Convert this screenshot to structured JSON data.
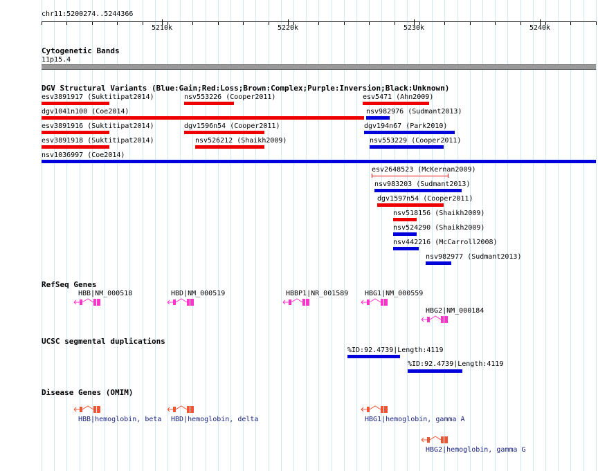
{
  "ruler": {
    "location": "chr11:5200274..5244366",
    "ticks": [
      "5210k",
      "5220k",
      "5230k",
      "5240k"
    ]
  },
  "cytobands": {
    "title": "Cytogenetic Bands",
    "band": "11p15.4"
  },
  "dgv": {
    "title": "DGV Structural Variants (Blue:Gain;Red:Loss;Brown:Complex;Purple:Inversion;Black:Unknown)",
    "colors": {
      "gain": "#0000dd",
      "loss": "#ee0000"
    },
    "features": [
      {
        "label": "esv3891917 (Suktitipat2014)",
        "type": "loss"
      },
      {
        "label": "nsv553226 (Cooper2011)",
        "type": "loss"
      },
      {
        "label": "esv5471 (Ahn2009)",
        "type": "loss"
      },
      {
        "label": "dgv1041n100 (Coe2014)",
        "type": "loss"
      },
      {
        "label": "nsv982976 (Sudmant2013)",
        "type": "gain"
      },
      {
        "label": "esv3891916 (Suktitipat2014)",
        "type": "loss"
      },
      {
        "label": "dgv1596n54 (Cooper2011)",
        "type": "loss"
      },
      {
        "label": "dgv194n67 (Park2010)",
        "type": "gain"
      },
      {
        "label": "esv3891918 (Suktitipat2014)",
        "type": "loss"
      },
      {
        "label": "nsv526212 (Shaikh2009)",
        "type": "loss"
      },
      {
        "label": "nsv553229 (Cooper2011)",
        "type": "gain"
      },
      {
        "label": "nsv1036997 (Coe2014)",
        "type": "gain"
      },
      {
        "label": "esv2648523 (McKernan2009)",
        "type": "loss"
      },
      {
        "label": "nsv983203 (Sudmant2013)",
        "type": "gain"
      },
      {
        "label": "dgv1597n54 (Cooper2011)",
        "type": "loss"
      },
      {
        "label": "nsv518156 (Shaikh2009)",
        "type": "loss"
      },
      {
        "label": "nsv524290 (Shaikh2009)",
        "type": "gain"
      },
      {
        "label": "nsv442216 (McCarroll2008)",
        "type": "gain"
      },
      {
        "label": "nsv982977 (Sudmant2013)",
        "type": "gain"
      }
    ]
  },
  "refseq": {
    "title": "RefSeq Genes",
    "color": "#ff33cc",
    "genes": [
      "HBB|NM_000518",
      "HBD|NM_000519",
      "HBBP1|NR_001589",
      "HBG1|NM_000559",
      "HBG2|NM_000184"
    ]
  },
  "segdups": {
    "title": "UCSC segmental duplications",
    "color": "#0000dd",
    "features": [
      "%ID:92.4739|Length:4119",
      "%ID:92.4739|Length:4119"
    ]
  },
  "omim": {
    "title": "Disease Genes (OMIM)",
    "color": "#ee5533",
    "genes": [
      "HBB|hemoglobin, beta",
      "HBD|hemoglobin, delta",
      "HBG1|hemoglobin, gamma A",
      "HBG2|hemoglobin, gamma G"
    ]
  }
}
